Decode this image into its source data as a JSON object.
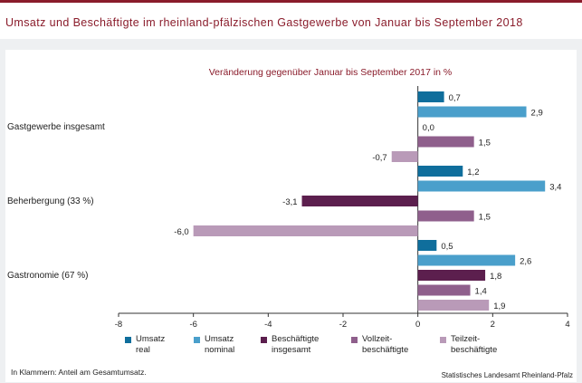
{
  "title": "Umsatz und Beschäftigte im rheinland-pfälzischen Gastgewerbe von Januar bis September 2018",
  "footnote": "In Klammern: Anteil am Gesamtumsatz.",
  "source": "Statistisches Landesamt Rheinland-Pfalz",
  "colors": {
    "accent": "#8a1c2b",
    "umsatz_real": "#0f6e9c",
    "umsatz_nominal": "#4a9fcb",
    "beschaeftigte_insgesamt": "#5c1f4e",
    "vollzeit": "#8f5f8c",
    "teilzeit": "#b99ab8"
  },
  "chart_data": {
    "type": "bar",
    "orientation": "horizontal",
    "subtitle": "Veränderung gegenüber Januar bis September 2017 in %",
    "categories": [
      "Gastgewerbe insgesamt",
      "Beherbergung (33 %)",
      "Gastronomie (67 %)"
    ],
    "series": [
      {
        "name": "Umsatz real",
        "color": "#0f6e9c",
        "values": [
          0.7,
          1.2,
          0.5
        ]
      },
      {
        "name": "Umsatz nominal",
        "color": "#4a9fcb",
        "values": [
          2.9,
          3.4,
          2.6
        ]
      },
      {
        "name": "Beschäftigte insgesamt",
        "color": "#5c1f4e",
        "values": [
          0.0,
          -3.1,
          1.8
        ]
      },
      {
        "name": "Vollzeit-beschäftigte",
        "color": "#8f5f8c",
        "values": [
          1.5,
          1.5,
          1.4
        ]
      },
      {
        "name": "Teilzeit-beschäftigte",
        "color": "#b99ab8",
        "values": [
          -0.7,
          -6.0,
          1.9
        ]
      }
    ],
    "value_labels": [
      [
        "0,7",
        "1,2",
        "0,5"
      ],
      [
        "2,9",
        "3,4",
        "2,6"
      ],
      [
        "0,0",
        "-3,1",
        "1,8"
      ],
      [
        "1,5",
        "1,5",
        "1,4"
      ],
      [
        "-0,7",
        "-6,0",
        "1,9"
      ]
    ],
    "legend_labels": [
      [
        "Umsatz",
        "real"
      ],
      [
        "Umsatz",
        "nominal"
      ],
      [
        "Beschäftigte",
        "insgesamt"
      ],
      [
        "Vollzeit-",
        "beschäftigte"
      ],
      [
        "Teilzeit-",
        "beschäftigte"
      ]
    ],
    "xlim": [
      -8,
      4
    ],
    "xticks": [
      -8,
      -6,
      -4,
      -2,
      0,
      2,
      4
    ],
    "legend_position": "bottom",
    "grid": false
  }
}
